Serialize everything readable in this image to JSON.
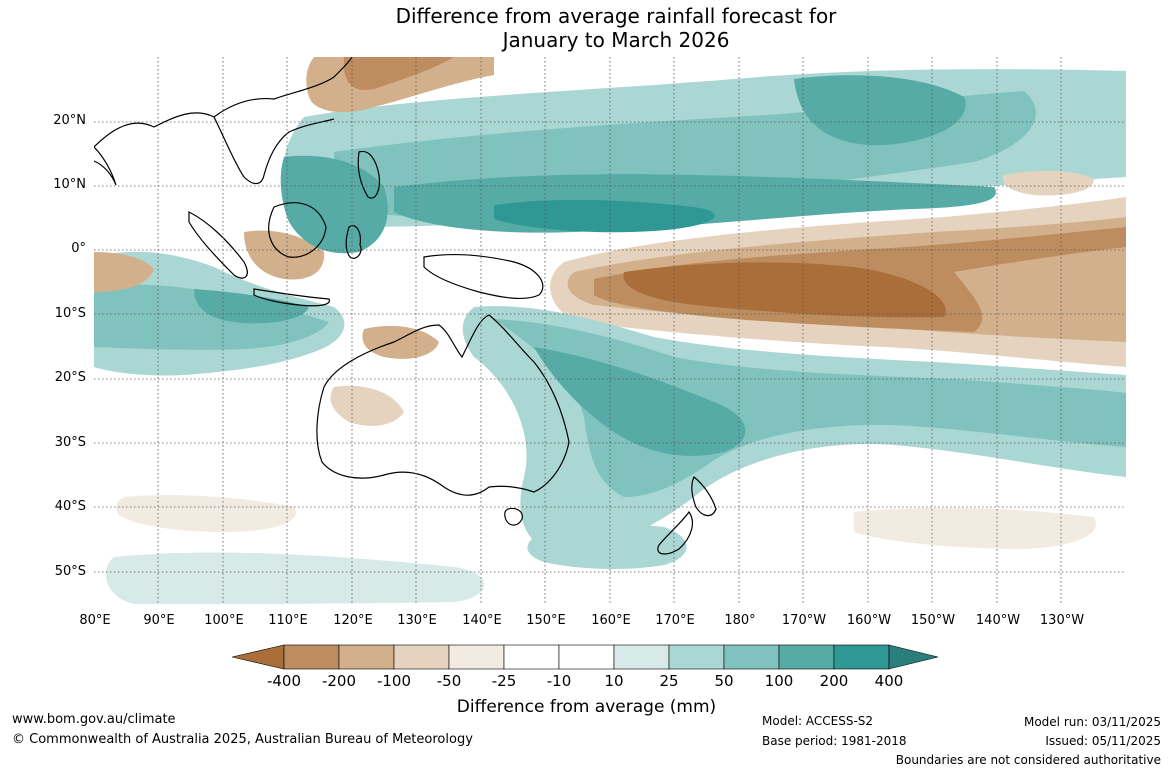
{
  "title": {
    "line1": "Difference from average rainfall forecast for",
    "line2": "January to March 2026"
  },
  "map": {
    "region": "Australia and Pacific",
    "latitude_labels": [
      "20°N",
      "10°N",
      "0°",
      "10°S",
      "20°S",
      "30°S",
      "40°S",
      "50°S"
    ],
    "longitude_labels": [
      "80°E",
      "90°E",
      "100°E",
      "110°E",
      "120°E",
      "130°E",
      "140°E",
      "150°E",
      "160°E",
      "170°E",
      "180°",
      "170°W",
      "160°W",
      "150°W",
      "140°W",
      "130°W"
    ],
    "land_outline_color": "#000000",
    "gridline_color": "#555555"
  },
  "legend": {
    "title": "Difference from average (mm)",
    "ticks": [
      "-400",
      "-200",
      "-100",
      "-50",
      "-25",
      "-10",
      "10",
      "25",
      "50",
      "100",
      "200",
      "400"
    ],
    "colors": [
      "#a96e3a",
      "#be8d5f",
      "#d3b08c",
      "#e6d3bf",
      "#f2ebe2",
      "#ffffff",
      "#d7eae8",
      "#aad7d3",
      "#80c2bd",
      "#56aba6",
      "#309894"
    ]
  },
  "footer": {
    "website": "www.bom.gov.au/climate",
    "copyright": "© Commonwealth of Australia 2025, Australian Bureau of Meteorology",
    "model": "Model: ACCESS-S2",
    "base_period": "Base period: 1981-2018",
    "model_run": "Model run: 03/11/2025",
    "issued": "Issued: 05/11/2025",
    "disclaimer": "Boundaries are not considered authoritative"
  }
}
